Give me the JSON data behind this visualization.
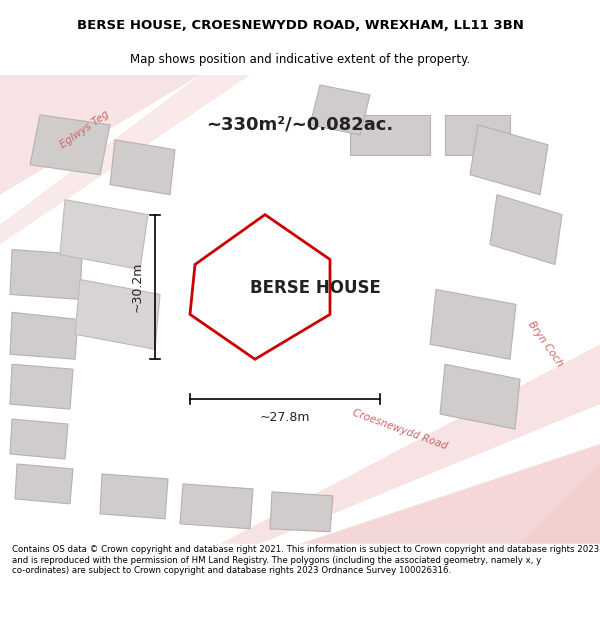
{
  "title": "BERSE HOUSE, CROESNEWYDD ROAD, WREXHAM, LL11 3BN",
  "subtitle": "Map shows position and indicative extent of the property.",
  "property_label": "BERSE HOUSE",
  "area_label": "~330m²/~0.082ac.",
  "width_label": "~27.8m",
  "height_label": "~30.2m",
  "footer": "Contains OS data © Crown copyright and database right 2021. This information is subject to Crown copyright and database rights 2023 and is reproduced with the permission of HM Land Registry. The polygons (including the associated geometry, namely x, y co-ordinates) are subject to Crown copyright and database rights 2023 Ordnance Survey 100026316.",
  "bg_color": "#f5f0f0",
  "map_bg": "#f5f0f0",
  "road_color_light": "#f0c8c8",
  "property_outline_color": "#cc0000",
  "building_fill": "#d4d0d0",
  "building_edge": "#c0b8b8",
  "road_label_color": "#cc6666",
  "title_color": "#000000",
  "footer_color": "#000000",
  "map_area": [
    0.0,
    0.08,
    1.0,
    0.88
  ]
}
